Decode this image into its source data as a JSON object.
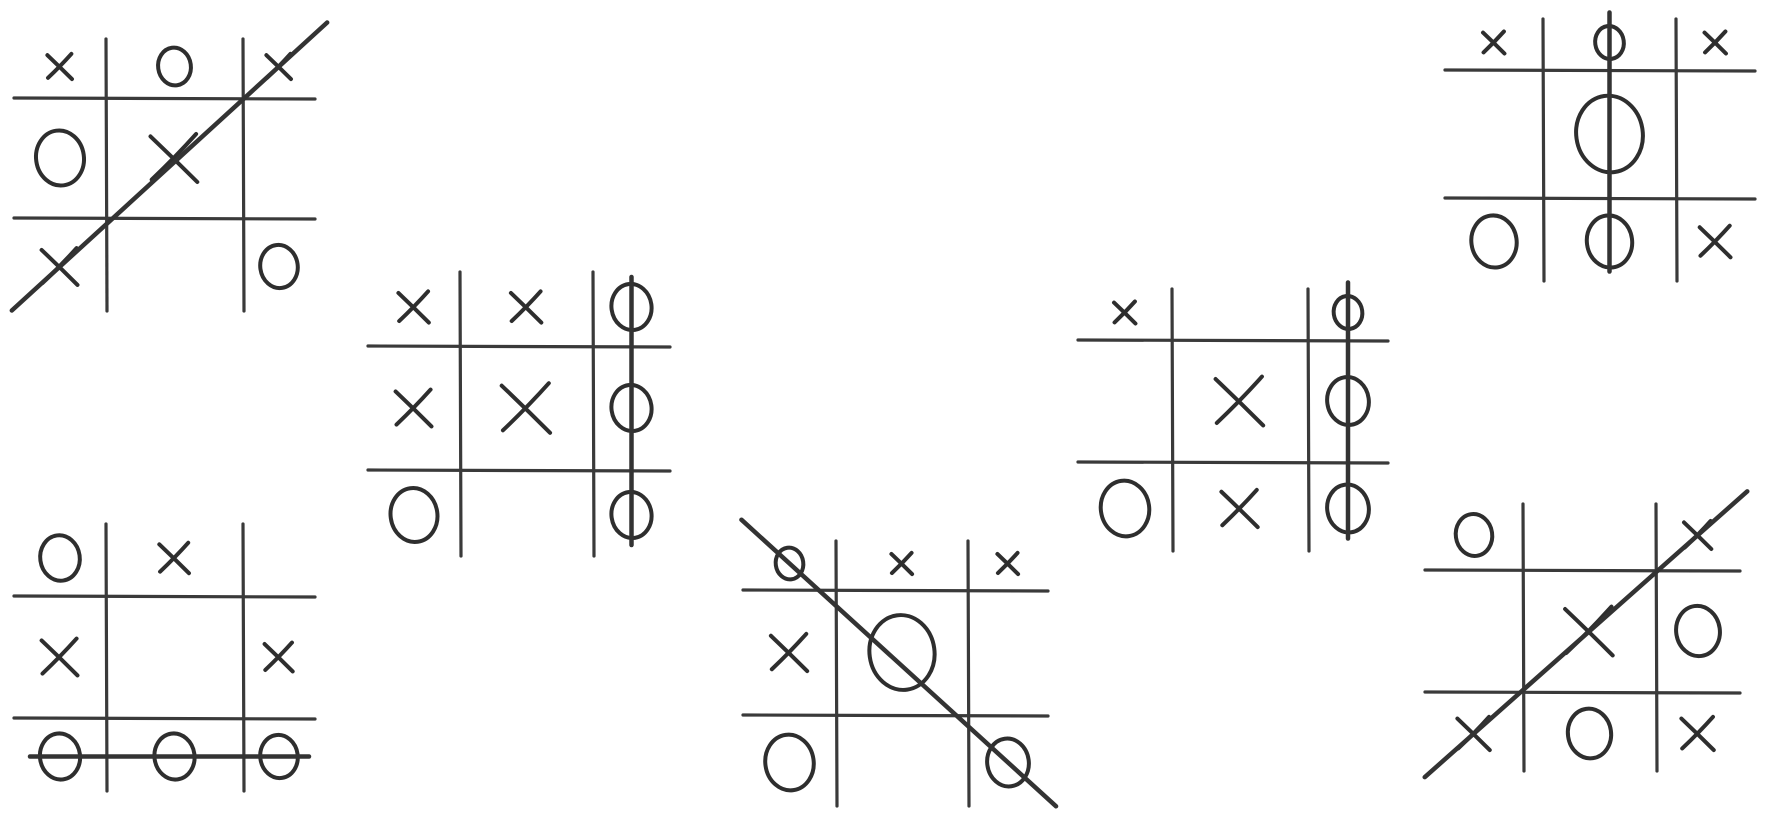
{
  "sheet_title": "",
  "legend": {
    "x_mark": "X",
    "o_mark": "O"
  },
  "boards": [
    {
      "name": "board-1",
      "cells": [
        [
          "X",
          "O",
          "X"
        ],
        [
          "O",
          "X",
          ""
        ],
        [
          "X",
          "",
          "O"
        ]
      ],
      "winner": "X",
      "win_line": "anti-diagonal"
    },
    {
      "name": "board-2",
      "cells": [
        [
          "X",
          "X",
          "O"
        ],
        [
          "X",
          "X",
          "O"
        ],
        [
          "O",
          "",
          "O"
        ]
      ],
      "winner": "O",
      "win_line": "column-3"
    },
    {
      "name": "board-3",
      "cells": [
        [
          "O",
          "X",
          ""
        ],
        [
          "X",
          "",
          "X"
        ],
        [
          "O",
          "O",
          "O"
        ]
      ],
      "winner": "O",
      "win_line": "row-3"
    },
    {
      "name": "board-4",
      "cells": [
        [
          "O",
          "X",
          "X"
        ],
        [
          "X",
          "O",
          ""
        ],
        [
          "O",
          "",
          "O"
        ]
      ],
      "winner": "O",
      "win_line": "diagonal"
    },
    {
      "name": "board-5",
      "cells": [
        [
          "X",
          "",
          "O"
        ],
        [
          "",
          "X",
          "O"
        ],
        [
          "O",
          "X",
          "O"
        ]
      ],
      "winner": "O",
      "win_line": "column-3"
    },
    {
      "name": "board-6",
      "cells": [
        [
          "X",
          "O",
          "X"
        ],
        [
          "",
          "O",
          ""
        ],
        [
          "O",
          "O",
          "X"
        ]
      ],
      "winner": "O",
      "win_line": "column-2"
    },
    {
      "name": "board-7",
      "cells": [
        [
          "O",
          "",
          "X"
        ],
        [
          "",
          "X",
          "O"
        ],
        [
          "X",
          "O",
          "X"
        ]
      ],
      "winner": "X",
      "win_line": "anti-diagonal"
    }
  ]
}
